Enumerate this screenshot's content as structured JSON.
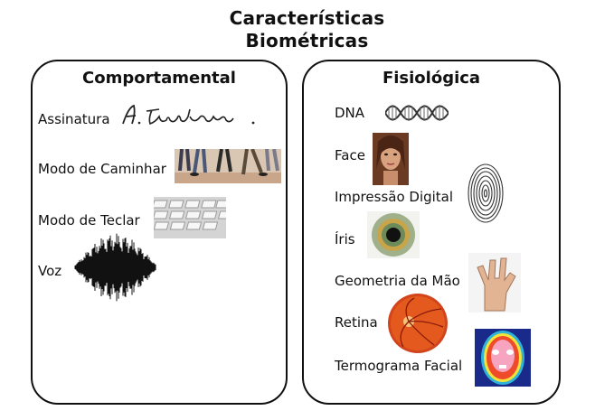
{
  "title": {
    "line1": "Características",
    "line2": "Biométricas"
  },
  "left_panel": {
    "heading": "Comportamental",
    "items": [
      {
        "label": "Assinatura",
        "icon": "signature-image"
      },
      {
        "label": "Modo de Caminhar",
        "icon": "walking-legs-photo"
      },
      {
        "label": "Modo de Teclar",
        "icon": "keyboard-photo"
      },
      {
        "label": "Voz",
        "icon": "voice-waveform-image"
      }
    ]
  },
  "right_panel": {
    "heading": "Fisiológica",
    "items": [
      {
        "label": "DNA",
        "icon": "dna-helix-image"
      },
      {
        "label": "Face",
        "icon": "face-photo"
      },
      {
        "label": "Impressão Digital",
        "icon": "fingerprint-image"
      },
      {
        "label": "Íris",
        "icon": "iris-photo"
      },
      {
        "label": "Geometria da Mão",
        "icon": "hand-photo"
      },
      {
        "label": "Retina",
        "icon": "retina-photo"
      },
      {
        "label": "Termograma Facial",
        "icon": "thermogram-image"
      }
    ]
  },
  "colors": {
    "border": "#111111",
    "text": "#111111",
    "background": "#ffffff"
  }
}
